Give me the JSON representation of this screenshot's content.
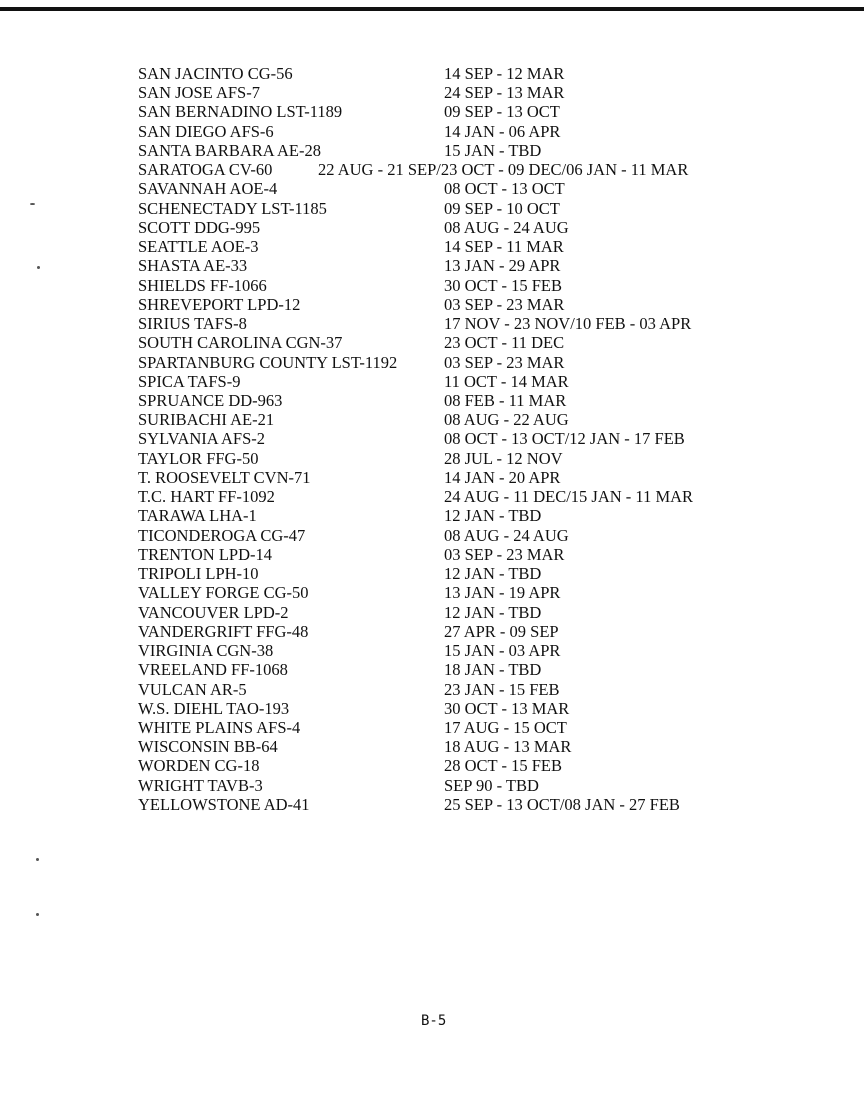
{
  "rows": [
    {
      "name": "SAN JACINTO CG-56",
      "dates": "14 SEP - 12 MAR"
    },
    {
      "name": "SAN JOSE AFS-7",
      "dates": "24 SEP - 13 MAR"
    },
    {
      "name": "SAN BERNADINO LST-1189",
      "dates": "09 SEP - 13 OCT"
    },
    {
      "name": "SAN DIEGO AFS-6",
      "dates": "14 JAN - 06 APR"
    },
    {
      "name": "SANTA BARBARA AE-28",
      "dates": "15 JAN - TBD"
    },
    {
      "name": "SARATOGA CV-60",
      "dates": "22 AUG - 21 SEP/23 OCT - 09 DEC/06 JAN - 11 MAR",
      "wide": true
    },
    {
      "name": "SAVANNAH AOE-4",
      "dates": "08 OCT - 13 OCT"
    },
    {
      "name": "SCHENECTADY LST-1185",
      "dates": "09 SEP - 10 OCT"
    },
    {
      "name": "SCOTT DDG-995",
      "dates": "08 AUG - 24 AUG"
    },
    {
      "name": "SEATTLE AOE-3",
      "dates": "14 SEP - 11 MAR"
    },
    {
      "name": "SHASTA AE-33",
      "dates": "13 JAN - 29 APR"
    },
    {
      "name": "SHIELDS FF-1066",
      "dates": "30 OCT - 15 FEB"
    },
    {
      "name": "SHREVEPORT LPD-12",
      "dates": "03 SEP - 23 MAR"
    },
    {
      "name": "SIRIUS TAFS-8",
      "dates": "17 NOV - 23 NOV/10 FEB - 03 APR"
    },
    {
      "name": "SOUTH CAROLINA CGN-37",
      "dates": "23 OCT - 11 DEC"
    },
    {
      "name": "SPARTANBURG COUNTY LST-1192",
      "dates": "03 SEP - 23 MAR"
    },
    {
      "name": "SPICA TAFS-9",
      "dates": "11 OCT - 14 MAR"
    },
    {
      "name": "SPRUANCE DD-963",
      "dates": "08 FEB - 11 MAR"
    },
    {
      "name": "SURIBACHI AE-21",
      "dates": "08 AUG - 22 AUG"
    },
    {
      "name": "SYLVANIA AFS-2",
      "dates": "08 OCT - 13 OCT/12 JAN - 17 FEB"
    },
    {
      "name": "TAYLOR FFG-50",
      "dates": "28 JUL - 12 NOV"
    },
    {
      "name": "T. ROOSEVELT CVN-71",
      "dates": "14 JAN - 20 APR"
    },
    {
      "name": "T.C. HART FF-1092",
      "dates": "24 AUG - 11 DEC/15 JAN - 11 MAR"
    },
    {
      "name": "TARAWA LHA-1",
      "dates": "12 JAN - TBD"
    },
    {
      "name": "TICONDEROGA CG-47",
      "dates": "08 AUG - 24 AUG"
    },
    {
      "name": "TRENTON LPD-14",
      "dates": "03 SEP - 23 MAR"
    },
    {
      "name": "TRIPOLI LPH-10",
      "dates": "12 JAN - TBD"
    },
    {
      "name": "VALLEY FORGE CG-50",
      "dates": "13 JAN - 19 APR"
    },
    {
      "name": "VANCOUVER LPD-2",
      "dates": "12 JAN - TBD"
    },
    {
      "name": "VANDERGRIFT FFG-48",
      "dates": "27 APR - 09 SEP"
    },
    {
      "name": "VIRGINIA CGN-38",
      "dates": "15 JAN - 03 APR"
    },
    {
      "name": "VREELAND FF-1068",
      "dates": "18 JAN - TBD"
    },
    {
      "name": "VULCAN AR-5",
      "dates": "23 JAN - 15 FEB"
    },
    {
      "name": "W.S. DIEHL TAO-193",
      "dates": "30 OCT - 13 MAR"
    },
    {
      "name": "WHITE PLAINS AFS-4",
      "dates": "17 AUG - 15 OCT"
    },
    {
      "name": "WISCONSIN BB-64",
      "dates": "18 AUG - 13 MAR"
    },
    {
      "name": "WORDEN CG-18",
      "dates": "28 OCT - 15 FEB"
    },
    {
      "name": "WRIGHT TAVB-3",
      "dates": "SEP 90 - TBD"
    },
    {
      "name": "YELLOWSTONE AD-41",
      "dates": "25 SEP - 13 OCT/08 JAN - 27 FEB"
    }
  ],
  "page_number": "B-5"
}
